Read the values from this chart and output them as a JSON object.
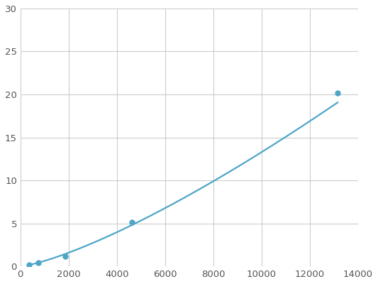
{
  "x": [
    370,
    740,
    1850,
    4630,
    13150
  ],
  "y": [
    0.2,
    0.4,
    1.2,
    5.1,
    20.2
  ],
  "line_color": "#4DA6C8",
  "marker_color": "#4DA6C8",
  "marker_size": 5,
  "line_width": 1.6,
  "xlim": [
    0,
    14000
  ],
  "ylim": [
    0,
    30
  ],
  "xticks": [
    0,
    2000,
    4000,
    6000,
    8000,
    10000,
    12000,
    14000
  ],
  "yticks": [
    0,
    5,
    10,
    15,
    20,
    25,
    30
  ],
  "grid_color": "#CCCCCC",
  "background_color": "#FFFFFF",
  "tick_label_fontsize": 9.5
}
